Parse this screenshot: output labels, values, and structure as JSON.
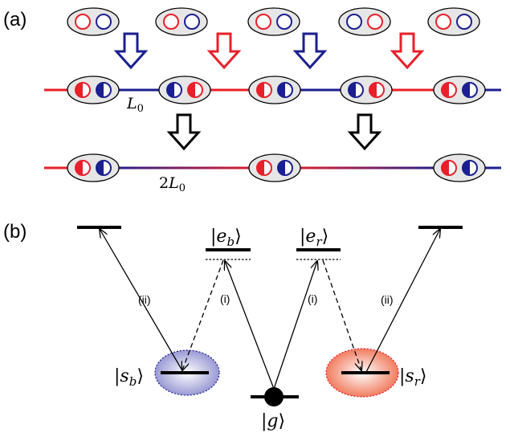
{
  "panels": {
    "a": {
      "label": "(a)"
    },
    "b": {
      "label": "(b)"
    }
  },
  "panel_a": {
    "segment_label_1": {
      "var": "L",
      "sub": "0"
    },
    "segment_label_2": {
      "coef": "2",
      "var": "L",
      "sub": "0"
    }
  },
  "panel_b": {
    "state_eb": {
      "pre": "|",
      "var": "e",
      "sub": "b",
      "post": "⟩"
    },
    "state_er": {
      "pre": "|",
      "var": "e",
      "sub": "r",
      "post": "⟩"
    },
    "state_sb": {
      "pre": "|",
      "var": "s",
      "sub": "b",
      "post": "⟩"
    },
    "state_sr": {
      "pre": "|",
      "var": "s",
      "sub": "r",
      "post": "⟩"
    },
    "state_g": {
      "pre": "|",
      "var": "g",
      "post": "⟩"
    },
    "transition_i": "(i)",
    "transition_ii": "(ii)"
  },
  "colors": {
    "red": "#e8202a",
    "blue": "#1b1f8f",
    "ellipse_fill": "#e6e6e6",
    "black": "#000000"
  }
}
